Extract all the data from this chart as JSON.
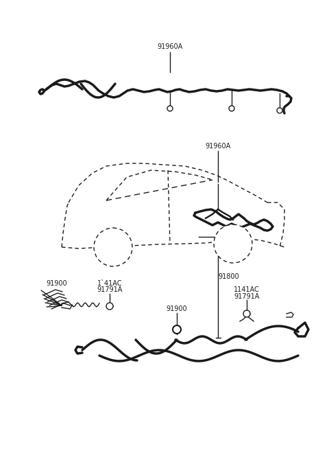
{
  "bg_color": "#ffffff",
  "line_color": "#1a1a1a",
  "text_color": "#1a1a1a",
  "figsize": [
    4.8,
    6.57
  ],
  "dpi": 100,
  "labels": {
    "top_part": "91960A",
    "mid_part": "91960A",
    "bot_left_part": "91900",
    "bot_left_l1": "1´41AC",
    "bot_left_l2": "91791A",
    "bot_mid_part": "91900",
    "bot_right_part": "91800",
    "bot_right_l1": "1141AC",
    "bot_right_l2": "91791A"
  }
}
